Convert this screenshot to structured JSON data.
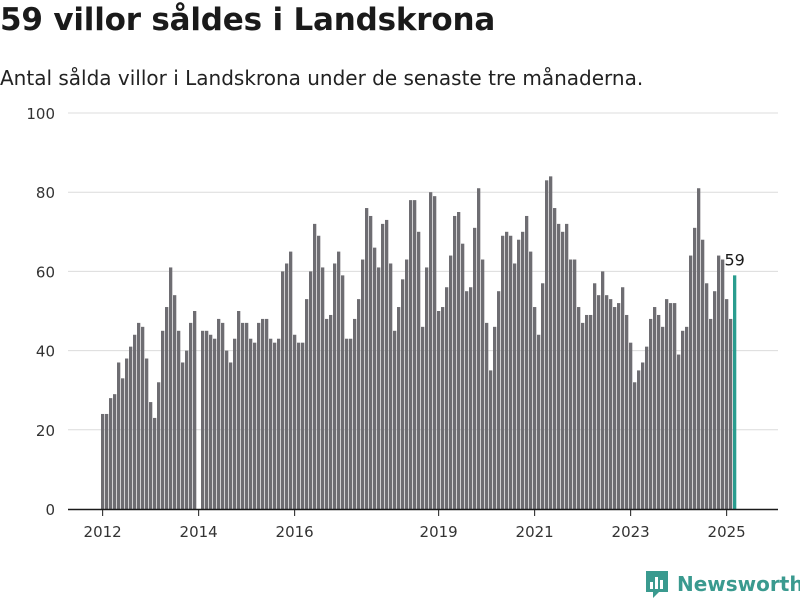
{
  "title": "59 villor såldes i Landskrona",
  "subtitle": "Antal sålda villor i Landskrona under de senaste tre månaderna.",
  "brand": "Newsworthy",
  "colors": {
    "bar": "#6e6d72",
    "highlight": "#2a9d8f",
    "grid": "#dcdcdc",
    "axis": "#1a1a1a"
  },
  "chart_data": {
    "type": "bar",
    "title": "59 villor såldes i Landskrona",
    "subtitle": "Antal sålda villor i Landskrona under de senaste tre månaderna.",
    "xlabel": "",
    "ylabel": "",
    "ylim": [
      0,
      100
    ],
    "yticks": [
      0,
      20,
      40,
      60,
      80,
      100
    ],
    "xticks": [
      "2012",
      "2014",
      "2016",
      "2019",
      "2021",
      "2023",
      "2025"
    ],
    "grid": true,
    "highlight_label": "59",
    "values": [
      24,
      24,
      28,
      29,
      37,
      33,
      38,
      41,
      44,
      47,
      46,
      38,
      27,
      23,
      32,
      45,
      51,
      61,
      54,
      45,
      37,
      40,
      47,
      50,
      0,
      45,
      45,
      44,
      43,
      48,
      47,
      40,
      37,
      43,
      50,
      47,
      47,
      43,
      42,
      47,
      48,
      48,
      43,
      42,
      43,
      60,
      62,
      65,
      44,
      42,
      42,
      53,
      60,
      72,
      69,
      61,
      48,
      49,
      62,
      65,
      59,
      43,
      43,
      48,
      53,
      63,
      76,
      74,
      66,
      61,
      72,
      73,
      62,
      45,
      51,
      58,
      63,
      78,
      78,
      70,
      46,
      61,
      80,
      79,
      50,
      51,
      56,
      64,
      74,
      75,
      67,
      55,
      56,
      71,
      81,
      63,
      47,
      35,
      46,
      55,
      69,
      70,
      69,
      62,
      68,
      70,
      74,
      65,
      51,
      44,
      57,
      83,
      84,
      76,
      72,
      70,
      72,
      63,
      63,
      51,
      47,
      49,
      49,
      57,
      54,
      60,
      54,
      53,
      51,
      52,
      56,
      49,
      42,
      32,
      35,
      37,
      41,
      48,
      51,
      49,
      46,
      53,
      52,
      52,
      39,
      45,
      46,
      64,
      71,
      81,
      68,
      57,
      48,
      55,
      64,
      63,
      53,
      48,
      59
    ]
  }
}
